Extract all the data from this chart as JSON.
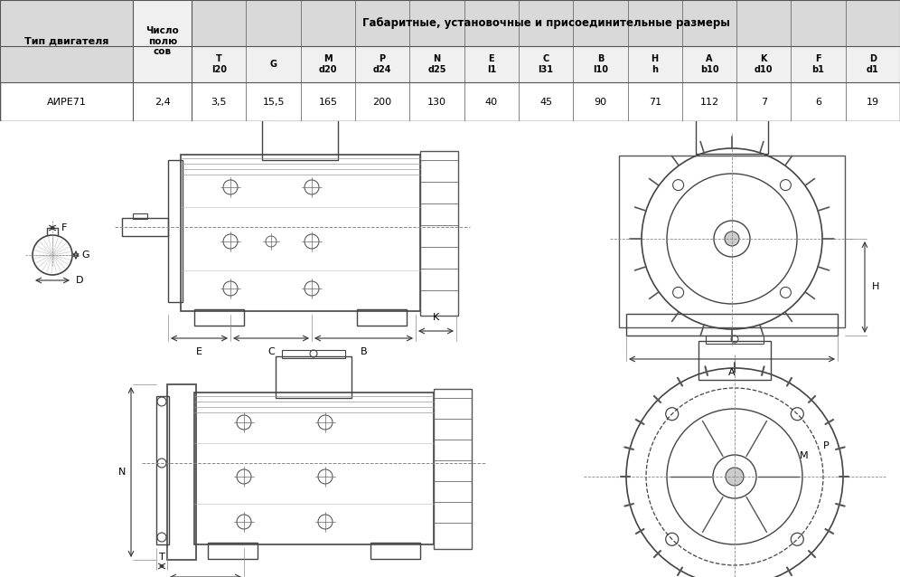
{
  "title": "Габаритные, установочные и присоединительные размеры",
  "col1_header": "Тип двигателя",
  "col2_header": "Число\nполю\nсов",
  "columns": [
    "T\nl20",
    "G",
    "M\nd20",
    "P\nd24",
    "N\nd25",
    "E\nl1",
    "C\nl31",
    "B\nl10",
    "H\nh",
    "A\nb10",
    "K\nd10",
    "F\nb1",
    "D\nd1"
  ],
  "motor_name": "АИРЕ71",
  "poles": "2,4",
  "values": [
    "3,5",
    "15,5",
    "165",
    "200",
    "130",
    "40",
    "45",
    "90",
    "71",
    "112",
    "7",
    "6",
    "19"
  ],
  "bg_header_dark": "#d9d9d9",
  "bg_header_light": "#f0f0f0",
  "bg_white": "#ffffff",
  "line_color": "#555555",
  "text_color": "#000000"
}
